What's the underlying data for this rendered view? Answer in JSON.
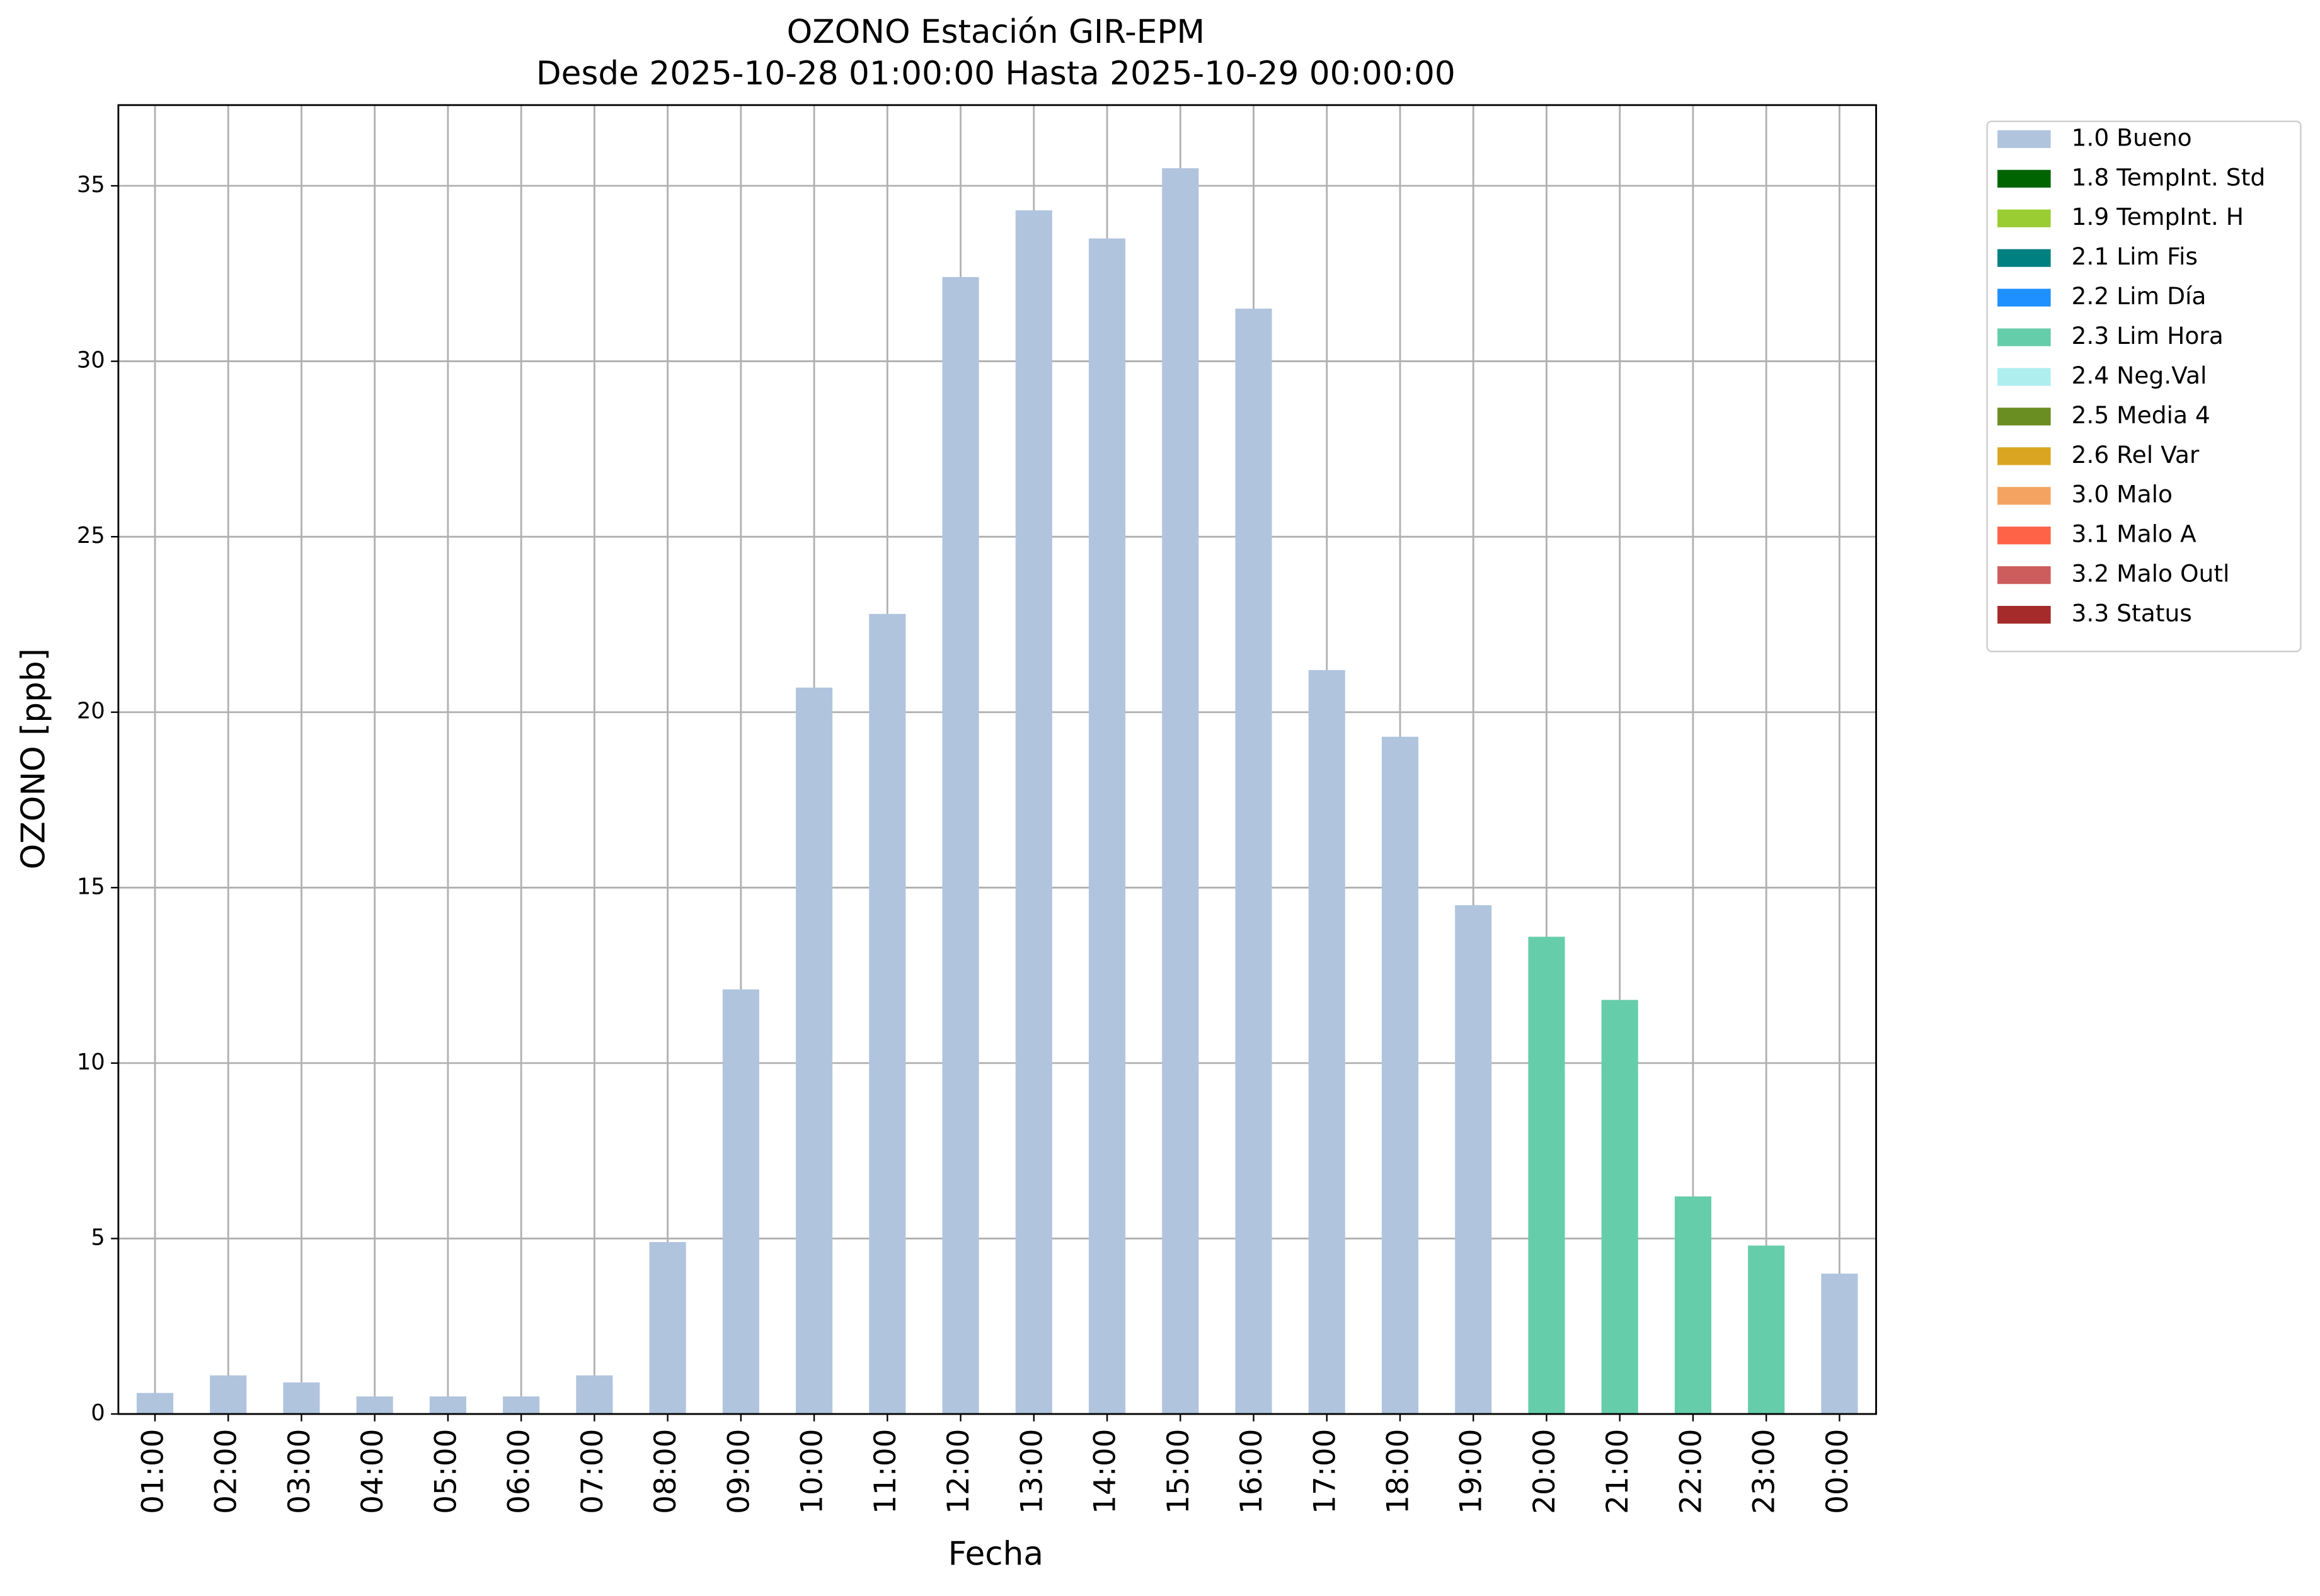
{
  "chart_data": {
    "type": "bar",
    "stacked": true,
    "title": "OZONO Estación GIR-EPM",
    "subtitle": "Desde 2025-10-28 01:00:00 Hasta 2025-10-29 00:00:00",
    "x_label": "Fecha",
    "y_label": "OZONO [ppb]",
    "categories": [
      "01:00",
      "02:00",
      "03:00",
      "04:00",
      "05:00",
      "06:00",
      "07:00",
      "08:00",
      "09:00",
      "10:00",
      "11:00",
      "12:00",
      "13:00",
      "14:00",
      "15:00",
      "16:00",
      "17:00",
      "18:00",
      "19:00",
      "20:00",
      "21:00",
      "22:00",
      "23:00",
      "00:00"
    ],
    "series": [
      {
        "name": "1.0 Bueno",
        "color": "#b0c4de",
        "values": [
          0.6,
          1.1,
          0.9,
          0.5,
          0.5,
          0.5,
          1.1,
          4.9,
          12.1,
          20.7,
          22.8,
          32.4,
          34.3,
          33.5,
          35.5,
          31.5,
          21.2,
          19.3,
          14.5,
          null,
          null,
          null,
          null,
          4.0
        ]
      },
      {
        "name": "1.8 TempInt. Std",
        "color": "#006400",
        "values": [
          null,
          null,
          null,
          null,
          null,
          null,
          null,
          null,
          null,
          null,
          null,
          null,
          null,
          null,
          null,
          null,
          null,
          null,
          null,
          null,
          null,
          null,
          null,
          null
        ]
      },
      {
        "name": "1.9 TempInt. H",
        "color": "#9acd32",
        "values": [
          null,
          null,
          null,
          null,
          null,
          null,
          null,
          null,
          null,
          null,
          null,
          null,
          null,
          null,
          null,
          null,
          null,
          null,
          null,
          null,
          null,
          null,
          null,
          null
        ]
      },
      {
        "name": "2.1 Lim Fis",
        "color": "#008080",
        "values": [
          null,
          null,
          null,
          null,
          null,
          null,
          null,
          null,
          null,
          null,
          null,
          null,
          null,
          null,
          null,
          null,
          null,
          null,
          null,
          null,
          null,
          null,
          null,
          null
        ]
      },
      {
        "name": "2.2 Lim Día",
        "color": "#1e90ff",
        "values": [
          null,
          null,
          null,
          null,
          null,
          null,
          null,
          null,
          null,
          null,
          null,
          null,
          null,
          null,
          null,
          null,
          null,
          null,
          null,
          null,
          null,
          null,
          null,
          null
        ]
      },
      {
        "name": "2.3 Lim Hora",
        "color": "#66cdaa",
        "values": [
          null,
          null,
          null,
          null,
          null,
          null,
          null,
          null,
          null,
          null,
          null,
          null,
          null,
          null,
          null,
          null,
          null,
          null,
          null,
          13.6,
          11.8,
          6.2,
          4.8,
          null
        ]
      },
      {
        "name": "2.4 Neg.Val",
        "color": "#afeeee",
        "values": [
          null,
          null,
          null,
          null,
          null,
          null,
          null,
          null,
          null,
          null,
          null,
          null,
          null,
          null,
          null,
          null,
          null,
          null,
          null,
          null,
          null,
          null,
          null,
          null
        ]
      },
      {
        "name": "2.5 Media 4",
        "color": "#6b8e23",
        "values": [
          null,
          null,
          null,
          null,
          null,
          null,
          null,
          null,
          null,
          null,
          null,
          null,
          null,
          null,
          null,
          null,
          null,
          null,
          null,
          null,
          null,
          null,
          null,
          null
        ]
      },
      {
        "name": "2.6 Rel Var",
        "color": "#daa520",
        "values": [
          null,
          null,
          null,
          null,
          null,
          null,
          null,
          null,
          null,
          null,
          null,
          null,
          null,
          null,
          null,
          null,
          null,
          null,
          null,
          null,
          null,
          null,
          null,
          null
        ]
      },
      {
        "name": "3.0 Malo",
        "color": "#f4a460",
        "values": [
          null,
          null,
          null,
          null,
          null,
          null,
          null,
          null,
          null,
          null,
          null,
          null,
          null,
          null,
          null,
          null,
          null,
          null,
          null,
          null,
          null,
          null,
          null,
          null
        ]
      },
      {
        "name": "3.1 Malo A",
        "color": "#ff6347",
        "values": [
          null,
          null,
          null,
          null,
          null,
          null,
          null,
          null,
          null,
          null,
          null,
          null,
          null,
          null,
          null,
          null,
          null,
          null,
          null,
          null,
          null,
          null,
          null,
          null
        ]
      },
      {
        "name": "3.2 Malo Outl",
        "color": "#cd5c5c",
        "values": [
          null,
          null,
          null,
          null,
          null,
          null,
          null,
          null,
          null,
          null,
          null,
          null,
          null,
          null,
          null,
          null,
          null,
          null,
          null,
          null,
          null,
          null,
          null,
          null
        ]
      },
      {
        "name": "3.3 Status",
        "color": "#a52a2a",
        "values": [
          null,
          null,
          null,
          null,
          null,
          null,
          null,
          null,
          null,
          null,
          null,
          null,
          null,
          null,
          null,
          null,
          null,
          null,
          null,
          null,
          null,
          null,
          null,
          null
        ]
      }
    ],
    "ylim": [
      0,
      37.3
    ],
    "yticks": [
      0,
      5,
      10,
      15,
      20,
      25,
      30,
      35
    ],
    "grid": true,
    "legend": "outside-upper-right"
  }
}
